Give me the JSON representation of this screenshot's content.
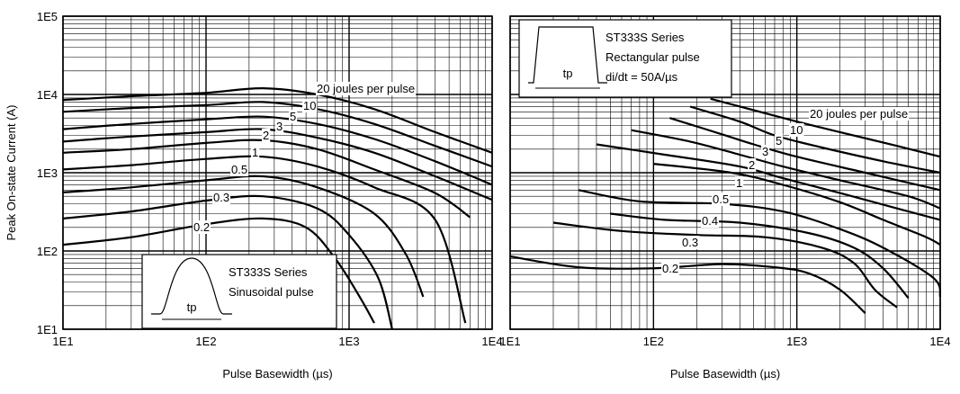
{
  "chart_data": [
    {
      "type": "line",
      "title": "",
      "xlabel": "Pulse Basewidth (µs)",
      "ylabel": "Peak On-state Current (A)",
      "x_scale": "log",
      "y_scale": "log",
      "xlim": [
        10,
        10000
      ],
      "ylim": [
        10,
        100000
      ],
      "x_tick_labels": [
        "1E1",
        "1E2",
        "1E3",
        "1E4"
      ],
      "y_tick_labels": [
        "1E1",
        "1E2",
        "1E3",
        "1E4",
        "1E5"
      ],
      "grid": true,
      "annotation": [
        "ST333S Series",
        "Sinusoidal pulse"
      ],
      "inset_label": "tp",
      "series": [
        {
          "name": "20 joules per pulse",
          "label": "20 joules per pulse",
          "points": [
            [
              10,
              8500
            ],
            [
              30,
              9500
            ],
            [
              100,
              10500
            ],
            [
              250,
              12000
            ],
            [
              600,
              10000
            ],
            [
              1500,
              6500
            ],
            [
              4000,
              3300
            ],
            [
              10000,
              1800
            ]
          ]
        },
        {
          "name": "10",
          "label": "10",
          "points": [
            [
              10,
              6000
            ],
            [
              30,
              6700
            ],
            [
              100,
              7300
            ],
            [
              250,
              8000
            ],
            [
              600,
              6500
            ],
            [
              1500,
              4200
            ],
            [
              4000,
              2200
            ],
            [
              10000,
              1200
            ]
          ]
        },
        {
          "name": "5",
          "label": "5",
          "points": [
            [
              10,
              3600
            ],
            [
              30,
              4200
            ],
            [
              100,
              4800
            ],
            [
              250,
              5200
            ],
            [
              600,
              4200
            ],
            [
              1500,
              2700
            ],
            [
              4000,
              1400
            ],
            [
              10000,
              700
            ]
          ]
        },
        {
          "name": "3",
          "label": "3",
          "points": [
            [
              10,
              2500
            ],
            [
              30,
              2900
            ],
            [
              100,
              3300
            ],
            [
              250,
              3600
            ],
            [
              600,
              2800
            ],
            [
              1500,
              1800
            ],
            [
              4000,
              900
            ],
            [
              10000,
              450
            ]
          ]
        },
        {
          "name": "2",
          "label": "2",
          "points": [
            [
              10,
              1800
            ],
            [
              30,
              2000
            ],
            [
              100,
              2400
            ],
            [
              250,
              2600
            ],
            [
              600,
              2000
            ],
            [
              1500,
              1100
            ],
            [
              4000,
              550
            ],
            [
              7000,
              270
            ]
          ]
        },
        {
          "name": "1",
          "label": "1",
          "points": [
            [
              10,
              1100
            ],
            [
              30,
              1250
            ],
            [
              100,
              1500
            ],
            [
              250,
              1600
            ],
            [
              600,
              1200
            ],
            [
              1500,
              650
            ],
            [
              4000,
              250
            ],
            [
              6500,
              12
            ]
          ]
        },
        {
          "name": "0.5",
          "label": "0.5",
          "points": [
            [
              10,
              560
            ],
            [
              30,
              650
            ],
            [
              100,
              800
            ],
            [
              250,
              900
            ],
            [
              600,
              650
            ],
            [
              1500,
              300
            ],
            [
              2500,
              90
            ],
            [
              3300,
              26
            ]
          ]
        },
        {
          "name": "0.3",
          "label": "0.3",
          "points": [
            [
              10,
              260
            ],
            [
              30,
              320
            ],
            [
              100,
              440
            ],
            [
              250,
              500
            ],
            [
              600,
              350
            ],
            [
              1000,
              160
            ],
            [
              1600,
              45
            ],
            [
              2000,
              10
            ]
          ]
        },
        {
          "name": "0.2",
          "label": "0.2",
          "points": [
            [
              10,
              120
            ],
            [
              30,
              150
            ],
            [
              100,
              220
            ],
            [
              250,
              260
            ],
            [
              500,
              200
            ],
            [
              800,
              80
            ],
            [
              1200,
              25
            ],
            [
              1500,
              12
            ]
          ]
        }
      ]
    },
    {
      "type": "line",
      "title": "",
      "xlabel": "Pulse Basewidth (µs)",
      "ylabel": "",
      "x_scale": "log",
      "y_scale": "log",
      "xlim": [
        10,
        10000
      ],
      "ylim": [
        10,
        100000
      ],
      "x_tick_labels": [
        "1E1",
        "1E2",
        "1E3",
        "1E4"
      ],
      "grid": true,
      "annotation": [
        "ST333S Series",
        "Rectangular pulse",
        "di/dt = 50A/µs"
      ],
      "inset_label": "tp",
      "series": [
        {
          "name": "20 joules per pulse",
          "label": "20 joules per pulse",
          "points": [
            [
              250,
              8800
            ],
            [
              500,
              6300
            ],
            [
              1000,
              4500
            ],
            [
              2000,
              3300
            ],
            [
              5000,
              2200
            ],
            [
              10000,
              1600
            ]
          ]
        },
        {
          "name": "10",
          "label": "10",
          "points": [
            [
              180,
              7000
            ],
            [
              400,
              4500
            ],
            [
              700,
              3000
            ],
            [
              1500,
              2100
            ],
            [
              4000,
              1400
            ],
            [
              10000,
              1000
            ]
          ]
        },
        {
          "name": "5",
          "label": "5",
          "points": [
            [
              130,
              5000
            ],
            [
              300,
              3100
            ],
            [
              500,
              2300
            ],
            [
              1000,
              1600
            ],
            [
              3000,
              1000
            ],
            [
              10000,
              600
            ]
          ]
        },
        {
          "name": "3",
          "label": "3",
          "points": [
            [
              70,
              3500
            ],
            [
              180,
              2500
            ],
            [
              400,
              1700
            ],
            [
              800,
              1200
            ],
            [
              2000,
              800
            ],
            [
              6000,
              500
            ],
            [
              10000,
              350
            ]
          ]
        },
        {
          "name": "2",
          "label": "2",
          "points": [
            [
              40,
              2300
            ],
            [
              120,
              1700
            ],
            [
              400,
              1200
            ],
            [
              800,
              850
            ],
            [
              2000,
              550
            ],
            [
              5000,
              350
            ],
            [
              10000,
              250
            ]
          ]
        },
        {
          "name": "1",
          "label": "1",
          "points": [
            [
              100,
              1300
            ],
            [
              350,
              1000
            ],
            [
              800,
              700
            ],
            [
              2000,
              420
            ],
            [
              4000,
              250
            ],
            [
              8000,
              150
            ],
            [
              10000,
              120
            ]
          ]
        },
        {
          "name": "0.5",
          "label": "0.5",
          "points": [
            [
              30,
              600
            ],
            [
              80,
              430
            ],
            [
              300,
              400
            ],
            [
              800,
              320
            ],
            [
              2000,
              190
            ],
            [
              4000,
              110
            ],
            [
              9000,
              45
            ],
            [
              10000,
              26
            ]
          ]
        },
        {
          "name": "0.4",
          "label": "0.4",
          "points": [
            [
              50,
              300
            ],
            [
              120,
              250
            ],
            [
              400,
              230
            ],
            [
              1200,
              170
            ],
            [
              2500,
              110
            ],
            [
              4000,
              60
            ],
            [
              6000,
              25
            ]
          ]
        },
        {
          "name": "0.3",
          "label": "0.3",
          "points": [
            [
              20,
              230
            ],
            [
              60,
              180
            ],
            [
              200,
              160
            ],
            [
              600,
              150
            ],
            [
              1500,
              110
            ],
            [
              2500,
              70
            ],
            [
              3500,
              32
            ],
            [
              5000,
              19
            ]
          ]
        },
        {
          "name": "0.2",
          "label": "0.2",
          "points": [
            [
              10,
              85
            ],
            [
              30,
              62
            ],
            [
              100,
              60
            ],
            [
              300,
              68
            ],
            [
              700,
              62
            ],
            [
              1200,
              52
            ],
            [
              2000,
              32
            ],
            [
              3000,
              16
            ]
          ]
        }
      ]
    }
  ]
}
